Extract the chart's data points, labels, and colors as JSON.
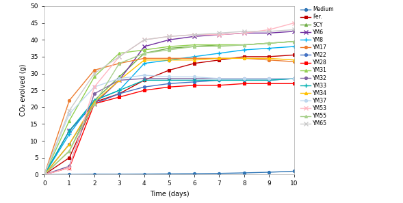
{
  "xlabel": "Time (days)",
  "ylabel": "CO₂ evolved (g)",
  "xlim": [
    0,
    10
  ],
  "ylim": [
    0,
    50
  ],
  "xticks": [
    0,
    1,
    2,
    3,
    4,
    5,
    6,
    7,
    8,
    9,
    10
  ],
  "yticks": [
    0,
    5,
    10,
    15,
    20,
    25,
    30,
    35,
    40,
    45,
    50
  ],
  "series": {
    "Medium": {
      "color": "#2E75B6",
      "marker": "o",
      "markersize": 3,
      "linewidth": 1.0,
      "data": [
        [
          0,
          0
        ],
        [
          1,
          0.05
        ],
        [
          2,
          0.1
        ],
        [
          3,
          0.1
        ],
        [
          4,
          0.15
        ],
        [
          5,
          0.2
        ],
        [
          6,
          0.25
        ],
        [
          7,
          0.35
        ],
        [
          8,
          0.5
        ],
        [
          9,
          0.7
        ],
        [
          10,
          1.0
        ]
      ]
    },
    "Fer.": {
      "color": "#C00000",
      "marker": "s",
      "markersize": 3,
      "linewidth": 1.0,
      "data": [
        [
          0,
          0
        ],
        [
          1,
          5
        ],
        [
          2,
          21.5
        ],
        [
          3,
          24
        ],
        [
          4,
          28
        ],
        [
          5,
          31
        ],
        [
          6,
          33
        ],
        [
          7,
          34
        ],
        [
          8,
          35
        ],
        [
          9,
          35
        ],
        [
          10,
          35.5
        ]
      ]
    },
    "SCY": {
      "color": "#70AD47",
      "marker": "^",
      "markersize": 3,
      "linewidth": 1.0,
      "data": [
        [
          0,
          0
        ],
        [
          1,
          7
        ],
        [
          2,
          22
        ],
        [
          3,
          29
        ],
        [
          4,
          36
        ],
        [
          5,
          37.5
        ],
        [
          6,
          38
        ],
        [
          7,
          38.5
        ],
        [
          8,
          38.5
        ],
        [
          9,
          39
        ],
        [
          10,
          39.5
        ]
      ]
    },
    "YM6": {
      "color": "#7030A0",
      "marker": "x",
      "markersize": 4,
      "linewidth": 1.0,
      "data": [
        [
          0,
          0
        ],
        [
          1,
          13
        ],
        [
          2,
          21
        ],
        [
          3,
          28
        ],
        [
          4,
          38
        ],
        [
          5,
          40
        ],
        [
          6,
          41
        ],
        [
          7,
          41.5
        ],
        [
          8,
          42
        ],
        [
          9,
          42
        ],
        [
          10,
          42.5
        ]
      ]
    },
    "YM8": {
      "color": "#00B0F0",
      "marker": "+",
      "markersize": 4,
      "linewidth": 1.0,
      "data": [
        [
          0,
          0
        ],
        [
          1,
          12
        ],
        [
          2,
          22
        ],
        [
          3,
          25
        ],
        [
          4,
          33
        ],
        [
          5,
          34
        ],
        [
          6,
          35
        ],
        [
          7,
          36
        ],
        [
          8,
          37
        ],
        [
          9,
          37.5
        ],
        [
          10,
          38
        ]
      ]
    },
    "YM17": {
      "color": "#ED7D31",
      "marker": "o",
      "markersize": 3,
      "linewidth": 1.0,
      "data": [
        [
          0,
          0
        ],
        [
          1,
          22
        ],
        [
          2,
          31
        ],
        [
          3,
          33
        ],
        [
          4,
          34.5
        ],
        [
          5,
          34.5
        ],
        [
          6,
          34.5
        ],
        [
          7,
          34.5
        ],
        [
          8,
          34.5
        ],
        [
          9,
          34
        ],
        [
          10,
          33.5
        ]
      ]
    },
    "YM22": {
      "color": "#4472C4",
      "marker": "o",
      "markersize": 3,
      "linewidth": 1.0,
      "data": [
        [
          0,
          0
        ],
        [
          1,
          9
        ],
        [
          2,
          21
        ],
        [
          3,
          24
        ],
        [
          4,
          26
        ],
        [
          5,
          27
        ],
        [
          6,
          27.5
        ],
        [
          7,
          28
        ],
        [
          8,
          28
        ],
        [
          9,
          28
        ],
        [
          10,
          28.5
        ]
      ]
    },
    "YM28": {
      "color": "#FF0000",
      "marker": "s",
      "markersize": 3,
      "linewidth": 1.0,
      "data": [
        [
          0,
          0
        ],
        [
          1,
          2
        ],
        [
          2,
          21
        ],
        [
          3,
          23
        ],
        [
          4,
          25
        ],
        [
          5,
          26
        ],
        [
          6,
          26.5
        ],
        [
          7,
          26.5
        ],
        [
          8,
          27
        ],
        [
          9,
          27
        ],
        [
          10,
          27
        ]
      ]
    },
    "YM31": {
      "color": "#92D050",
      "marker": "^",
      "markersize": 3,
      "linewidth": 1.0,
      "data": [
        [
          0,
          0
        ],
        [
          1,
          16
        ],
        [
          2,
          29
        ],
        [
          3,
          36
        ],
        [
          4,
          37
        ],
        [
          5,
          38
        ],
        [
          6,
          38.5
        ],
        [
          7,
          38.5
        ],
        [
          8,
          38.5
        ],
        [
          9,
          39
        ],
        [
          10,
          39.5
        ]
      ]
    },
    "YM32": {
      "color": "#8064A2",
      "marker": "o",
      "markersize": 3,
      "linewidth": 1.0,
      "data": [
        [
          0,
          0
        ],
        [
          1,
          2.5
        ],
        [
          2,
          24
        ],
        [
          3,
          28
        ],
        [
          4,
          28.5
        ],
        [
          5,
          28.5
        ],
        [
          6,
          28.5
        ],
        [
          7,
          28.5
        ],
        [
          8,
          28.5
        ],
        [
          9,
          28.5
        ],
        [
          10,
          28.5
        ]
      ]
    },
    "YM33": {
      "color": "#00B0B0",
      "marker": "+",
      "markersize": 4,
      "linewidth": 1.0,
      "data": [
        [
          0,
          0
        ],
        [
          1,
          13
        ],
        [
          2,
          22
        ],
        [
          3,
          25
        ],
        [
          4,
          28
        ],
        [
          5,
          28
        ],
        [
          6,
          28
        ],
        [
          7,
          28
        ],
        [
          8,
          28
        ],
        [
          9,
          28
        ],
        [
          10,
          28.5
        ]
      ]
    },
    "YM34": {
      "color": "#FFC000",
      "marker": "^",
      "markersize": 3,
      "linewidth": 1.0,
      "data": [
        [
          0,
          0
        ],
        [
          1,
          9
        ],
        [
          2,
          21.5
        ],
        [
          3,
          28
        ],
        [
          4,
          34
        ],
        [
          5,
          34
        ],
        [
          6,
          34
        ],
        [
          7,
          34.5
        ],
        [
          8,
          34.5
        ],
        [
          9,
          34.5
        ],
        [
          10,
          34
        ]
      ]
    },
    "YM37": {
      "color": "#BDD7EE",
      "marker": "o",
      "markersize": 3,
      "linewidth": 1.0,
      "data": [
        [
          0,
          0
        ],
        [
          1,
          18
        ],
        [
          2,
          26
        ],
        [
          3,
          28.5
        ],
        [
          4,
          29.5
        ],
        [
          5,
          29
        ],
        [
          6,
          29
        ],
        [
          7,
          28.5
        ],
        [
          8,
          28.5
        ],
        [
          9,
          28.5
        ],
        [
          10,
          28.5
        ]
      ]
    },
    "YM53": {
      "color": "#FFB6C1",
      "marker": "x",
      "markersize": 4,
      "linewidth": 1.0,
      "data": [
        [
          0,
          0
        ],
        [
          1,
          2
        ],
        [
          2,
          26
        ],
        [
          3,
          35
        ],
        [
          4,
          40
        ],
        [
          5,
          41
        ],
        [
          6,
          41.5
        ],
        [
          7,
          41.5
        ],
        [
          8,
          42
        ],
        [
          9,
          43
        ],
        [
          10,
          45
        ]
      ]
    },
    "YM55": {
      "color": "#A9D18E",
      "marker": "^",
      "markersize": 3,
      "linewidth": 1.0,
      "data": [
        [
          0,
          0
        ],
        [
          1,
          7
        ],
        [
          2,
          21
        ],
        [
          3,
          33
        ],
        [
          4,
          36
        ],
        [
          5,
          37
        ],
        [
          6,
          38
        ],
        [
          7,
          38
        ],
        [
          8,
          38.5
        ],
        [
          9,
          39
        ],
        [
          10,
          39.5
        ]
      ]
    },
    "YM65": {
      "color": "#CCCCCC",
      "marker": "x",
      "markersize": 4,
      "linewidth": 1.0,
      "data": [
        [
          0,
          0
        ],
        [
          1,
          19
        ],
        [
          2,
          30
        ],
        [
          3,
          35
        ],
        [
          4,
          40
        ],
        [
          5,
          41
        ],
        [
          6,
          41.5
        ],
        [
          7,
          42
        ],
        [
          8,
          42.5
        ],
        [
          9,
          42.5
        ],
        [
          10,
          43
        ]
      ]
    }
  },
  "legend_order": [
    "Medium",
    "Fer.",
    "SCY",
    "YM6",
    "YM8",
    "YM17",
    "YM22",
    "YM28",
    "YM31",
    "YM32",
    "YM33",
    "YM34",
    "YM37",
    "YM53",
    "YM55",
    "YM65"
  ],
  "figsize": [
    5.89,
    2.97
  ],
  "dpi": 100
}
